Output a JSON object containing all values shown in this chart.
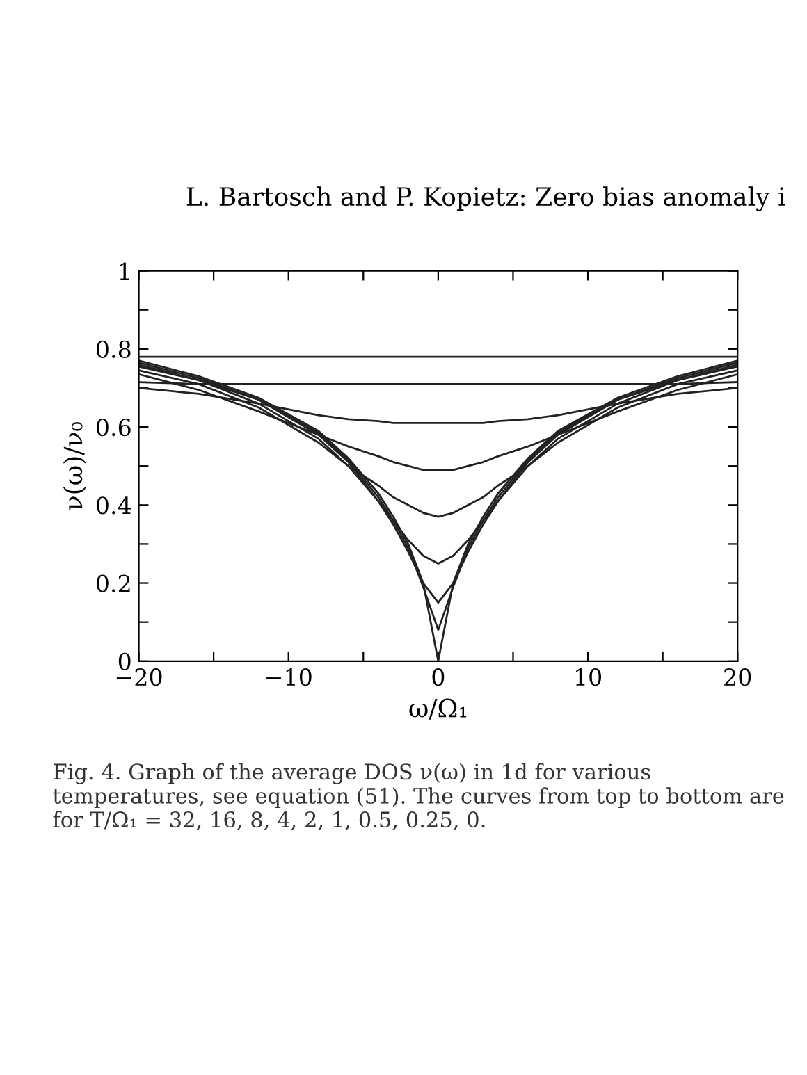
{
  "chart_data": {
    "type": "line",
    "title": "L. Bartosch and P. Kopietz: Zero bias anomaly i",
    "xlabel": "ω/Ω₁",
    "ylabel": "ν(ω)/ν₀",
    "x": [
      -20,
      -16,
      -12,
      -8,
      -6,
      -4,
      -3,
      -2,
      -1,
      0,
      1,
      2,
      3,
      4,
      6,
      8,
      12,
      16,
      20
    ],
    "series": [
      {
        "color": "#222222",
        "values": [
          0.78,
          0.78,
          0.78,
          0.78,
          0.78,
          0.78,
          0.78,
          0.78,
          0.78,
          0.78,
          0.78,
          0.78,
          0.78,
          0.78,
          0.78,
          0.78,
          0.78,
          0.78,
          0.78
        ]
      },
      {
        "color": "#222222",
        "values": [
          0.715,
          0.71,
          0.71,
          0.71,
          0.71,
          0.71,
          0.71,
          0.71,
          0.71,
          0.71,
          0.71,
          0.71,
          0.71,
          0.71,
          0.71,
          0.71,
          0.71,
          0.71,
          0.715
        ]
      },
      {
        "color": "#222222",
        "values": [
          0.7,
          0.685,
          0.66,
          0.63,
          0.62,
          0.615,
          0.61,
          0.61,
          0.61,
          0.61,
          0.61,
          0.61,
          0.61,
          0.615,
          0.62,
          0.63,
          0.66,
          0.685,
          0.7
        ]
      },
      {
        "color": "#222222",
        "values": [
          0.735,
          0.695,
          0.64,
          0.58,
          0.55,
          0.525,
          0.51,
          0.5,
          0.49,
          0.49,
          0.49,
          0.5,
          0.51,
          0.525,
          0.55,
          0.58,
          0.64,
          0.695,
          0.735
        ]
      },
      {
        "color": "#222222",
        "values": [
          0.745,
          0.71,
          0.65,
          0.56,
          0.5,
          0.45,
          0.42,
          0.4,
          0.38,
          0.37,
          0.38,
          0.4,
          0.42,
          0.45,
          0.5,
          0.56,
          0.65,
          0.71,
          0.745
        ]
      },
      {
        "color": "#222222",
        "values": [
          0.755,
          0.72,
          0.66,
          0.57,
          0.5,
          0.41,
          0.36,
          0.31,
          0.27,
          0.25,
          0.27,
          0.31,
          0.36,
          0.41,
          0.5,
          0.57,
          0.66,
          0.72,
          0.755
        ]
      },
      {
        "color": "#222222",
        "values": [
          0.76,
          0.72,
          0.67,
          0.58,
          0.51,
          0.41,
          0.35,
          0.28,
          0.2,
          0.15,
          0.2,
          0.28,
          0.35,
          0.41,
          0.51,
          0.58,
          0.67,
          0.72,
          0.76
        ]
      },
      {
        "color": "#222222",
        "values": [
          0.765,
          0.725,
          0.67,
          0.585,
          0.515,
          0.42,
          0.36,
          0.29,
          0.19,
          0.08,
          0.19,
          0.29,
          0.36,
          0.42,
          0.515,
          0.585,
          0.67,
          0.725,
          0.765
        ]
      },
      {
        "color": "#222222",
        "values": [
          0.77,
          0.73,
          0.675,
          0.59,
          0.52,
          0.43,
          0.37,
          0.3,
          0.2,
          0,
          0.2,
          0.3,
          0.37,
          0.43,
          0.52,
          0.59,
          0.675,
          0.73,
          0.77
        ]
      }
    ],
    "xlim": [
      -20,
      20
    ],
    "ylim": [
      0,
      1
    ],
    "xticks": [
      {
        "value": -20,
        "label": "−20"
      },
      {
        "value": -15,
        "label": null
      },
      {
        "value": -10,
        "label": "−10"
      },
      {
        "value": -5,
        "label": null
      },
      0,
      {
        "value": 5,
        "label": null
      },
      10,
      {
        "value": 15,
        "label": null
      },
      20
    ],
    "yticks": [
      0,
      {
        "value": 0.1,
        "label": null
      },
      0.2,
      {
        "value": 0.3,
        "label": null
      },
      0.4,
      {
        "value": 0.5,
        "label": null
      },
      0.6,
      {
        "value": 0.7,
        "label": null
      },
      0.8,
      {
        "value": 0.9,
        "label": null
      },
      1
    ],
    "grid": false,
    "legend": false,
    "marker": "none",
    "line_style": "solid",
    "annotations": [
      "Fig. 4. Graph of the average DOS ν(ω) in 1d for various temperatures, see equation (51). The curves from top to bottom are for T/Ω₁ = 32, 16, 8, 4, 2, 1, 0.5, 0.25, 0."
    ]
  }
}
